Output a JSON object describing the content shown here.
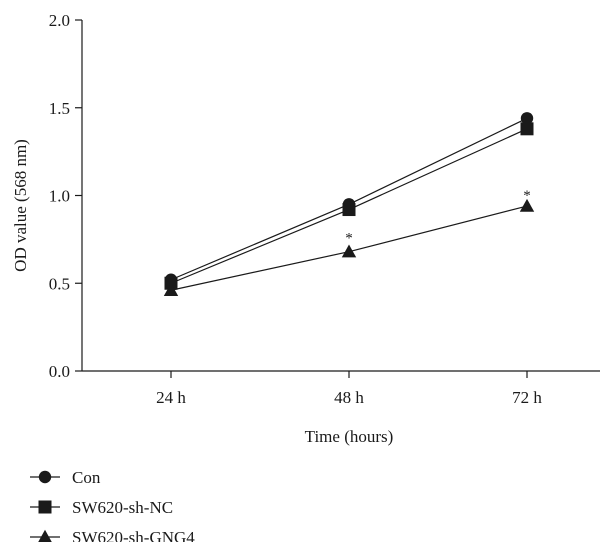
{
  "chart_data": {
    "type": "line",
    "categories": [
      "24 h",
      "48 h",
      "72 h"
    ],
    "series": [
      {
        "name": "Con",
        "values": [
          0.52,
          0.95,
          1.44
        ],
        "marker": "circle"
      },
      {
        "name": "SW620-sh-NC",
        "values": [
          0.5,
          0.92,
          1.38
        ],
        "marker": "square"
      },
      {
        "name": "SW620-sh-GNG4",
        "values": [
          0.46,
          0.68,
          0.94
        ],
        "marker": "triangle"
      }
    ],
    "title": "",
    "xlabel": "Time (hours)",
    "ylabel": "OD value (568 nm)",
    "ylim": [
      0.0,
      2.0
    ],
    "yticks": [
      "0.0",
      "0.5",
      "1.0",
      "1.5",
      "2.0"
    ],
    "grid": false,
    "legend_position": "bottom-left",
    "annotations": [
      {
        "text": "*",
        "category_index": 1,
        "near_value": 0.79
      },
      {
        "text": "*",
        "category_index": 2,
        "near_value": 1.03
      }
    ],
    "colors": {
      "ink": "#1a1a1a",
      "background": "#ffffff"
    }
  }
}
